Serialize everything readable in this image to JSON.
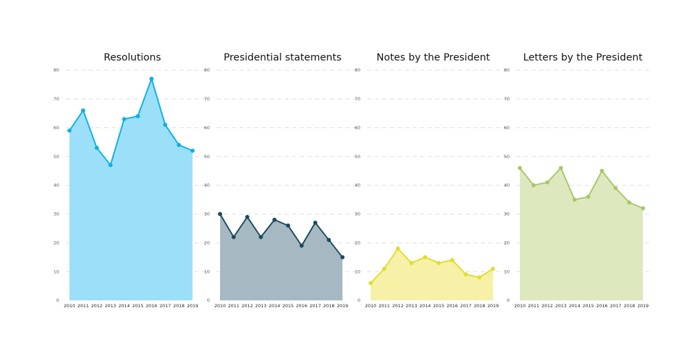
{
  "chart_data": [
    {
      "type": "area",
      "title": "Resolutions",
      "x": [
        2010,
        2011,
        2012,
        2013,
        2014,
        2015,
        2016,
        2017,
        2018,
        2019
      ],
      "values": [
        59,
        66,
        53,
        47,
        63,
        64,
        77,
        61,
        54,
        52
      ],
      "ylim": [
        0,
        80
      ],
      "yticks": [
        0,
        10,
        20,
        30,
        40,
        50,
        60,
        70,
        80
      ],
      "grid": true,
      "line_color": "#0ab0e8",
      "fill_color": "#9be0f8"
    },
    {
      "type": "area",
      "title": "Presidential statements",
      "x": [
        2010,
        2011,
        2012,
        2013,
        2014,
        2015,
        2016,
        2017,
        2018,
        2019
      ],
      "values": [
        30,
        22,
        29,
        22,
        28,
        26,
        19,
        27,
        21,
        15
      ],
      "ylim": [
        0,
        80
      ],
      "yticks": [
        0,
        10,
        20,
        30,
        40,
        50,
        60,
        70,
        80
      ],
      "grid": true,
      "line_color": "#1a4a5c",
      "fill_color": "#a6b9c3"
    },
    {
      "type": "area",
      "title": "Notes by the President",
      "x": [
        2010,
        2011,
        2012,
        2013,
        2014,
        2015,
        2016,
        2017,
        2018,
        2019
      ],
      "values": [
        6,
        11,
        18,
        13,
        15,
        13,
        14,
        9,
        8,
        11
      ],
      "ylim": [
        0,
        80
      ],
      "yticks": [
        0,
        10,
        20,
        30,
        40,
        50,
        60,
        70,
        80
      ],
      "grid": true,
      "line_color": "#e0de2a",
      "fill_color": "#f6f1a6"
    },
    {
      "type": "area",
      "title": "Letters by the President",
      "x": [
        2010,
        2011,
        2012,
        2013,
        2014,
        2015,
        2016,
        2017,
        2018,
        2019
      ],
      "values": [
        46,
        40,
        41,
        46,
        35,
        36,
        45,
        39,
        34,
        32
      ],
      "ylim": [
        0,
        80
      ],
      "yticks": [
        0,
        10,
        20,
        30,
        40,
        50,
        60,
        70,
        80
      ],
      "grid": true,
      "line_color": "#a9c66a",
      "fill_color": "#dde8bf"
    }
  ]
}
